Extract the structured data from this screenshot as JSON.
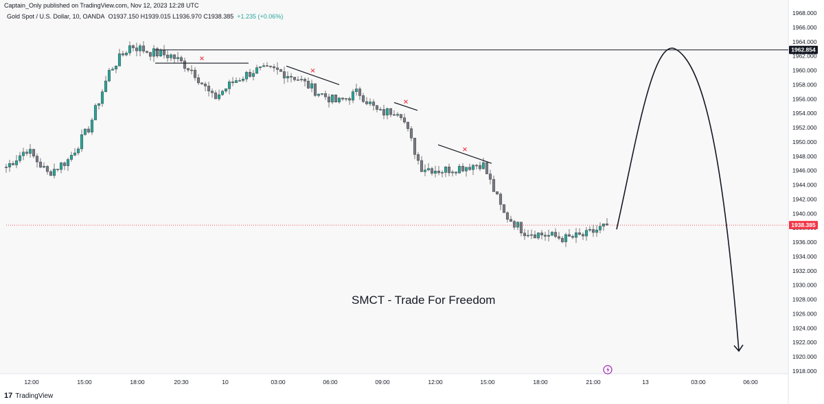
{
  "header": {
    "published": "Captain_Only published on TradingView.com, Nov 12, 2023 12:28 UTC",
    "symbol": "Gold Spot / U.S. Dollar, 10, OANDA",
    "ohlc": "O1937.150  H1939.015  L1936.970  C1938.385",
    "change": "+1.235 (+0.06%)"
  },
  "watermark": "SMCT - Trade For Freedom",
  "footer": {
    "logo_mark": "17",
    "logo_text": "TradingView"
  },
  "colors": {
    "bull": "#26a69a",
    "bear": "#787b86",
    "last_price": "#f23645",
    "level": "#131722",
    "cross": "#f23645",
    "event_icon": "#9c27b0"
  },
  "price_tags": {
    "level": "1962.854",
    "last": "1938.385"
  },
  "chart_data": {
    "type": "candlestick",
    "symbol": "Gold Spot / U.S. Dollar",
    "interval": "10",
    "ylim": [
      1917,
      1968
    ],
    "y_ticks": [
      1918,
      1920,
      1922,
      1924,
      1926,
      1928,
      1930,
      1932,
      1934,
      1936,
      1938,
      1940,
      1942,
      1944,
      1946,
      1948,
      1950,
      1952,
      1954,
      1956,
      1958,
      1960,
      1962,
      1964,
      1966,
      1968
    ],
    "x_ticks": [
      "12:00",
      "15:00",
      "18:00",
      "20:30",
      "10",
      "03:00",
      "06:00",
      "09:00",
      "12:00",
      "15:00",
      "18:00",
      "21:00",
      "13",
      "03:00",
      "06:00"
    ],
    "horizontal_level": 1962.854,
    "last_price": 1938.385,
    "path_keypoints": [
      {
        "x": 1946.5,
        "y": 1946.5
      },
      {
        "x": 1946.0,
        "y": 1949.0
      },
      {
        "x": 1946.6,
        "y": 1945.6
      },
      {
        "x": 1947.5,
        "y": 1947.5
      },
      {
        "x": 1950.0,
        "y": 1952.0
      },
      {
        "x": 1956.0,
        "y": 1960.0
      },
      {
        "x": 1962.5,
        "y": 1963.5
      },
      {
        "x": 1961.0,
        "y": 1962.5
      },
      {
        "x": 1964.0,
        "y": 1962.0
      },
      {
        "x": 1964.2,
        "y": 1960.0
      },
      {
        "x": 1959.0,
        "y": 1956.0
      },
      {
        "x": 1958.0,
        "y": 1958.5
      },
      {
        "x": 1958.5,
        "y": 1960.0
      },
      {
        "x": 1961.0,
        "y": 1960.0
      },
      {
        "x": 1960.0,
        "y": 1959.0
      },
      {
        "x": 1957.5,
        "y": 1957.0
      },
      {
        "x": 1957.0,
        "y": 1955.5
      },
      {
        "x": 1955.5,
        "y": 1957.0
      },
      {
        "x": 1955.5,
        "y": 1954.0
      },
      {
        "x": 1953.5,
        "y": 1954.5
      },
      {
        "x": 1953.8,
        "y": 1946.5
      },
      {
        "x": 1947.5,
        "y": 1946.0
      },
      {
        "x": 1945.0,
        "y": 1946.5
      },
      {
        "x": 1946.5,
        "y": 1947.0
      },
      {
        "x": 1944.0,
        "y": 1940.0
      },
      {
        "x": 1939.0,
        "y": 1937.5
      },
      {
        "x": 1934.0,
        "y": 1937.0
      },
      {
        "x": 1935.5,
        "y": 1936.5
      },
      {
        "x": 1936.0,
        "y": 1937.0
      },
      {
        "x": 1937.2,
        "y": 1938.4
      }
    ],
    "trendlines": [
      {
        "from": [
          1961.0,
          0
        ],
        "to": [
          1961.0,
          1
        ]
      },
      {
        "from": [
          1960.6,
          0
        ],
        "to": [
          1958.0,
          1
        ]
      },
      {
        "from": [
          1955.5,
          0
        ],
        "to": [
          1954.4,
          1
        ]
      },
      {
        "from": [
          1949.6,
          0
        ],
        "to": [
          1947.0,
          1
        ]
      }
    ],
    "projection": {
      "start": 1937.8,
      "peak": 1963.0,
      "end": 1920.8
    }
  }
}
